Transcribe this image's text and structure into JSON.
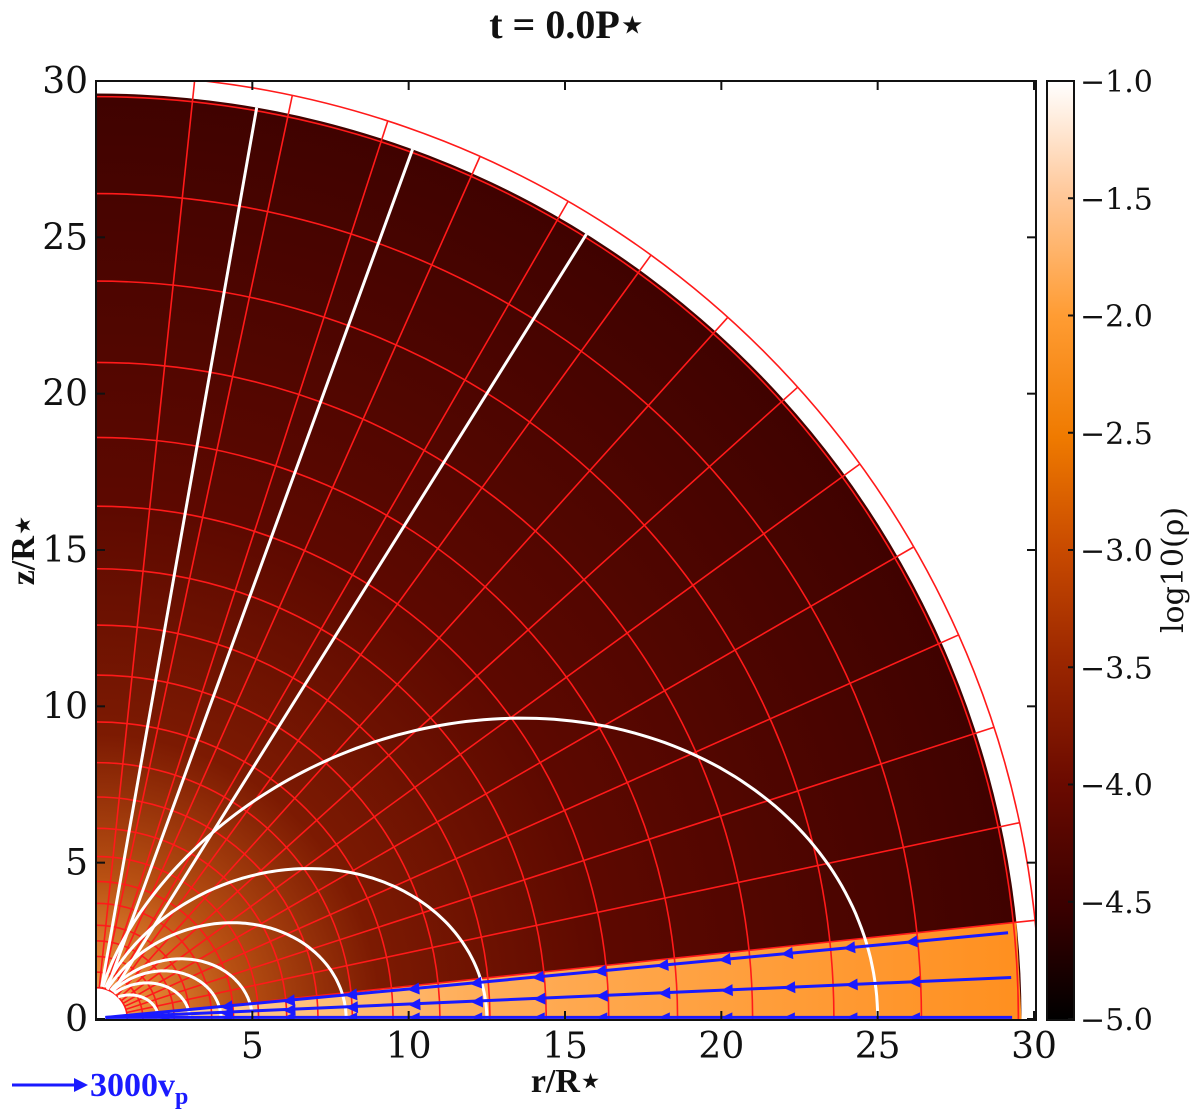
{
  "chart_data": {
    "type": "heatmap",
    "title": "t = 0.0P⋆",
    "xlabel": "r/R⋆",
    "ylabel": "z/R⋆",
    "xlim": [
      0,
      30
    ],
    "ylim": [
      0,
      30
    ],
    "x_ticks": [
      "5",
      "10",
      "15",
      "20",
      "25",
      "30"
    ],
    "y_ticks": [
      "0",
      "5",
      "10",
      "15",
      "20",
      "25",
      "30"
    ],
    "colorbar": {
      "label": "log10(ρ)",
      "range": [
        -5.0,
        -1.0
      ],
      "ticks": [
        "−1.0",
        "−1.5",
        "−2.0",
        "−2.5",
        "−3.0",
        "−3.5",
        "−4.0",
        "−4.5",
        "−5.0"
      ],
      "colors": [
        "#000000",
        "#3a0000",
        "#6a0a00",
        "#9a2600",
        "#c84a00",
        "#ef7a00",
        "#ff9c33",
        "#ffc89a",
        "#ffffff"
      ]
    },
    "domain_outer_radius": 29.6,
    "disk_half_opening_deg": 6,
    "field_lines": {
      "dipole_equatorial_radii": [
        2,
        3,
        4,
        5,
        8,
        12.5,
        25
      ],
      "open_line_angles_deg": [
        58,
        70,
        80
      ]
    },
    "grid": {
      "radial_lines_deg": [
        6,
        12,
        18,
        24,
        30,
        36,
        42,
        48,
        54,
        60,
        66,
        72,
        78,
        84
      ],
      "circle_radii": [
        1.0,
        1.5,
        2.0,
        2.5,
        3.0,
        3.7,
        4.4,
        5.2,
        6.1,
        7.1,
        8.2,
        9.5,
        11.0,
        12.6,
        14.4,
        16.4,
        18.6,
        21.0,
        23.6,
        26.4,
        29.5,
        30.2
      ]
    },
    "velocity_arrows": {
      "disk_line_angles_deg": [
        2.6,
        5.4
      ],
      "arrow_radii": [
        4,
        6,
        8,
        10,
        12,
        14,
        16,
        18,
        20,
        22,
        24,
        26
      ]
    },
    "legend_arrow_label": "3000v",
    "legend_arrow_sub": "p"
  }
}
